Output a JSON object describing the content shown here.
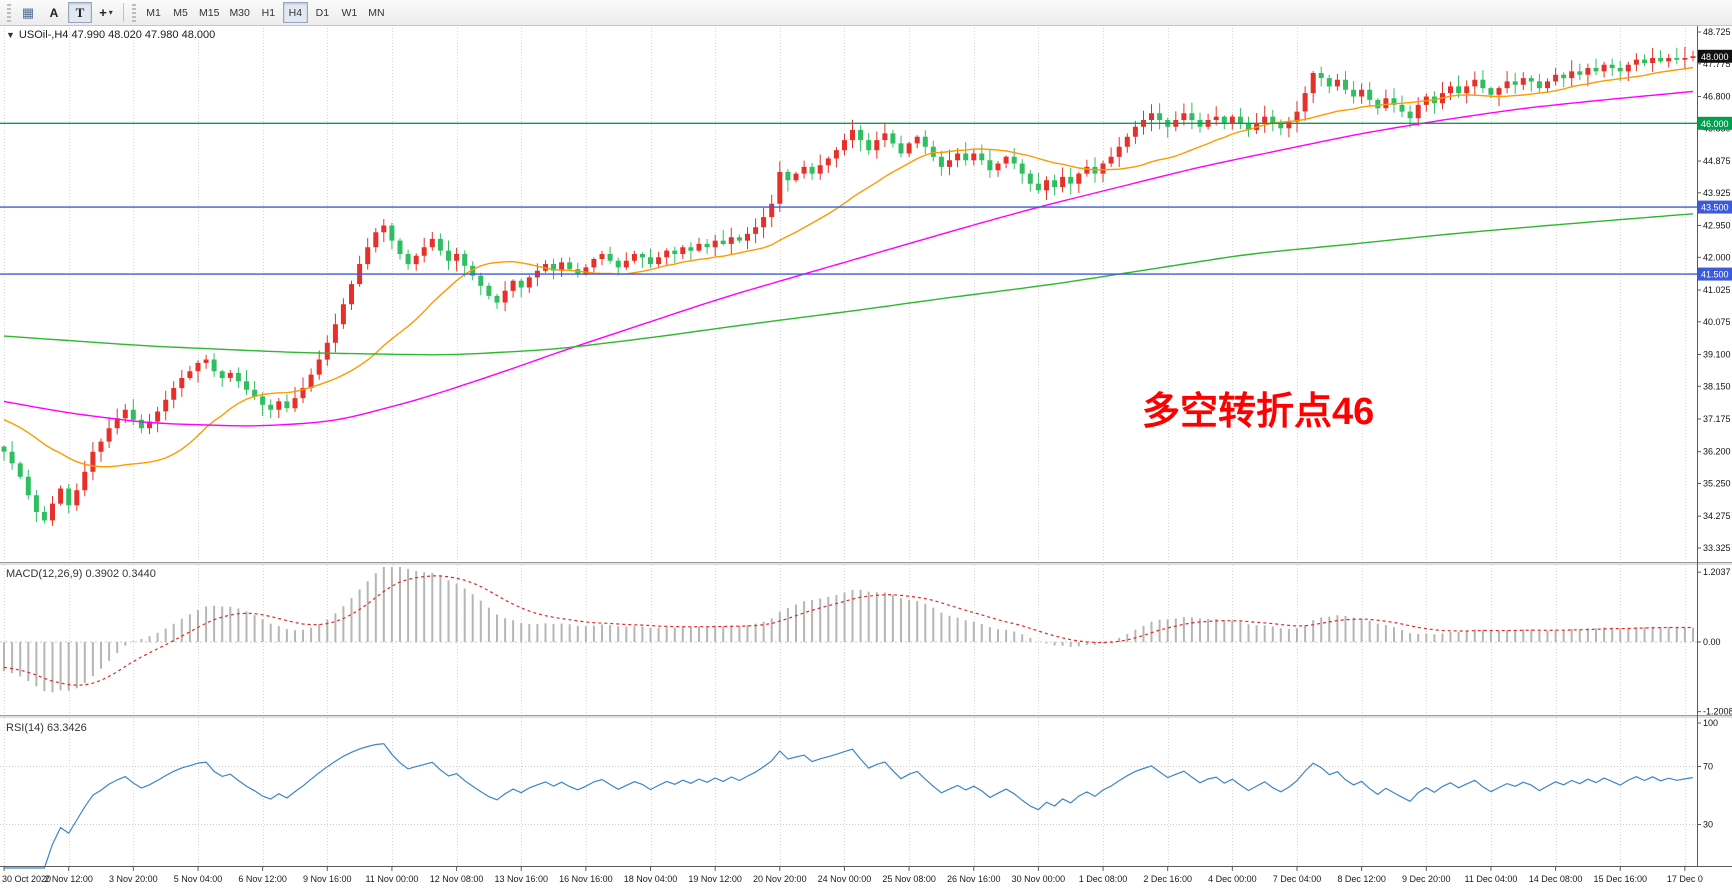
{
  "toolbar": {
    "icons": {
      "chart_grid": "▦",
      "crosshair": "+",
      "dropdown_caret": "▾",
      "collapse": "▼"
    },
    "tool_a_label": "A",
    "tool_t_label": "T",
    "timeframes": [
      "M1",
      "M5",
      "M15",
      "M30",
      "H1",
      "H4",
      "D1",
      "W1",
      "MN"
    ],
    "active_timeframe": "H4"
  },
  "chart": {
    "title": "USOil-,H4 47.990 48.020 47.980 48.000",
    "symbol": "USOil-",
    "period": "H4",
    "annotation": "多空转折点46",
    "annotation_color": "#ff0000",
    "price_axis_labels": [
      "48.725",
      "47.775",
      "46.800",
      "45.850",
      "44.875",
      "43.925",
      "42.950",
      "42.000",
      "41.025",
      "40.075",
      "39.100",
      "38.150",
      "37.175",
      "36.200",
      "35.250",
      "34.275",
      "33.325"
    ],
    "hlines": [
      {
        "price": 46.0,
        "color": "#00a050"
      },
      {
        "price": 43.5,
        "color": "#3b5bdb"
      },
      {
        "price": 41.5,
        "color": "#3b5bdb"
      }
    ],
    "badges": [
      {
        "label": "48.000",
        "price": 48.0,
        "bg": "#111111"
      },
      {
        "label": "46.000",
        "price": 46.0,
        "bg": "#00a050"
      },
      {
        "label": "43.500",
        "price": 43.5,
        "bg": "#3b5bdb"
      },
      {
        "label": "41.500",
        "price": 41.5,
        "bg": "#3b5bdb"
      }
    ]
  },
  "macd": {
    "label": "MACD(12,26,9) 0.3902 0.3440",
    "value": "0.3902",
    "signal_value": "0.3440",
    "axis_labels": [
      "1.2037",
      "0.00",
      "-1.2008"
    ],
    "axis_max": 1.2037,
    "axis_min": -1.2008,
    "histogram_color": "#b6b6b6",
    "signal_color": "#e02828"
  },
  "rsi": {
    "label": "RSI(14) 63.3426",
    "value": "63.3426",
    "axis_labels": [
      "100",
      "70",
      "30"
    ],
    "levels": [
      70,
      30
    ],
    "line_color": "#3d85c8"
  },
  "time_axis": [
    "30 Oct 2020",
    "2 Nov 12:00",
    "3 Nov 20:00",
    "5 Nov 04:00",
    "6 Nov 12:00",
    "9 Nov 16:00",
    "11 Nov 00:00",
    "12 Nov 08:00",
    "13 Nov 16:00",
    "16 Nov 16:00",
    "18 Nov 04:00",
    "19 Nov 12:00",
    "20 Nov 20:00",
    "24 Nov 00:00",
    "25 Nov 08:00",
    "26 Nov 16:00",
    "30 Nov 00:00",
    "1 Dec 08:00",
    "2 Dec 16:00",
    "4 Dec 00:00",
    "7 Dec 04:00",
    "8 Dec 12:00",
    "9 Dec 20:00",
    "11 Dec 04:00",
    "14 Dec 08:00",
    "15 Dec 16:00",
    "17 Dec 0"
  ],
  "chart_data": {
    "type": "candlestick",
    "symbol": "USOil-",
    "timeframe": "H4",
    "ohlc_current": {
      "open": 47.99,
      "high": 48.02,
      "low": 47.98,
      "close": 48.0
    },
    "ylim": [
      33.325,
      48.725
    ],
    "grid_label_step": 8,
    "up_color": "#e8302a",
    "down_color": "#2fbf61",
    "pre_closes": [
      38.6,
      38.5,
      38.4,
      38.3,
      38.2,
      38.1,
      38.0,
      37.9,
      37.8,
      37.7,
      37.6,
      37.5,
      37.4,
      37.3,
      37.2,
      37.1,
      37.0,
      36.9,
      36.8,
      36.7,
      36.6,
      36.5,
      36.45,
      36.4
    ],
    "closes": [
      36.2,
      35.85,
      35.45,
      34.9,
      34.4,
      34.15,
      34.65,
      35.1,
      34.6,
      35.05,
      35.6,
      36.2,
      36.5,
      36.9,
      37.2,
      37.45,
      37.15,
      36.9,
      37.1,
      37.4,
      37.75,
      38.1,
      38.4,
      38.6,
      38.85,
      38.95,
      38.6,
      38.4,
      38.55,
      38.3,
      38.05,
      37.85,
      37.6,
      37.45,
      37.7,
      37.5,
      37.8,
      38.1,
      38.5,
      38.95,
      39.45,
      40.0,
      40.6,
      41.2,
      41.8,
      42.3,
      42.75,
      42.95,
      42.5,
      42.1,
      41.8,
      42.05,
      42.3,
      42.55,
      42.2,
      41.9,
      42.1,
      41.75,
      41.45,
      41.15,
      40.85,
      40.65,
      41.0,
      41.3,
      41.1,
      41.4,
      41.6,
      41.8,
      41.6,
      41.85,
      41.65,
      41.5,
      41.7,
      41.95,
      42.1,
      41.9,
      41.7,
      41.9,
      42.1,
      42.0,
      41.8,
      42.0,
      42.2,
      42.1,
      42.3,
      42.2,
      42.4,
      42.3,
      42.5,
      42.4,
      42.6,
      42.5,
      42.7,
      42.9,
      43.2,
      43.6,
      44.55,
      44.3,
      44.5,
      44.7,
      44.5,
      44.75,
      44.95,
      45.2,
      45.5,
      45.8,
      45.5,
      45.2,
      45.5,
      45.7,
      45.4,
      45.1,
      45.4,
      45.6,
      45.3,
      45.0,
      44.7,
      44.9,
      45.1,
      44.9,
      45.1,
      44.9,
      44.6,
      44.8,
      45.0,
      44.8,
      44.5,
      44.2,
      44.0,
      44.3,
      44.1,
      44.4,
      44.2,
      44.5,
      44.7,
      44.5,
      44.8,
      45.0,
      45.3,
      45.6,
      45.9,
      46.1,
      46.3,
      46.1,
      45.9,
      46.1,
      46.3,
      46.1,
      45.9,
      46.1,
      46.2,
      46.0,
      46.2,
      46.0,
      45.8,
      46.0,
      46.2,
      46.0,
      45.85,
      46.05,
      46.35,
      46.9,
      47.5,
      47.35,
      47.1,
      47.3,
      47.0,
      46.8,
      47.0,
      46.7,
      46.45,
      46.75,
      46.55,
      46.35,
      46.15,
      46.55,
      46.8,
      46.6,
      46.9,
      47.1,
      46.9,
      47.1,
      47.3,
      47.05,
      46.85,
      47.05,
      47.25,
      47.15,
      47.35,
      47.25,
      47.05,
      47.25,
      47.45,
      47.35,
      47.55,
      47.45,
      47.65,
      47.55,
      47.75,
      47.65,
      47.55,
      47.75,
      47.9,
      47.8,
      47.95,
      47.85,
      47.95,
      47.9,
      47.95,
      48.0
    ],
    "ma": [
      {
        "name": "ma-fast",
        "color": "#ff9900",
        "type": "sma",
        "period": 20
      },
      {
        "name": "ma-mid",
        "color": "#ff00ff",
        "type": "anchors",
        "anchors": [
          [
            0,
            37.7
          ],
          [
            8,
            37.35
          ],
          [
            18,
            37.05
          ],
          [
            31,
            36.95
          ],
          [
            41,
            37.1
          ],
          [
            52,
            37.8
          ],
          [
            62,
            38.6
          ],
          [
            69,
            39.2
          ],
          [
            79,
            40.0
          ],
          [
            89,
            40.8
          ],
          [
            99,
            41.5
          ],
          [
            109,
            42.2
          ],
          [
            119,
            42.9
          ],
          [
            128,
            43.5
          ],
          [
            138,
            44.1
          ],
          [
            148,
            44.7
          ],
          [
            158,
            45.2
          ],
          [
            168,
            45.7
          ],
          [
            178,
            46.1
          ],
          [
            188,
            46.45
          ],
          [
            198,
            46.7
          ],
          [
            209,
            46.95
          ]
        ]
      },
      {
        "name": "ma-slow",
        "color": "#2db82d",
        "type": "anchors",
        "anchors": [
          [
            0,
            39.65
          ],
          [
            18,
            39.35
          ],
          [
            37,
            39.15
          ],
          [
            55,
            39.08
          ],
          [
            68,
            39.25
          ],
          [
            80,
            39.6
          ],
          [
            92,
            40.0
          ],
          [
            105,
            40.4
          ],
          [
            117,
            40.8
          ],
          [
            130,
            41.2
          ],
          [
            142,
            41.65
          ],
          [
            154,
            42.1
          ],
          [
            167,
            42.4
          ],
          [
            179,
            42.7
          ],
          [
            191,
            42.95
          ],
          [
            209,
            43.3
          ]
        ]
      }
    ]
  }
}
